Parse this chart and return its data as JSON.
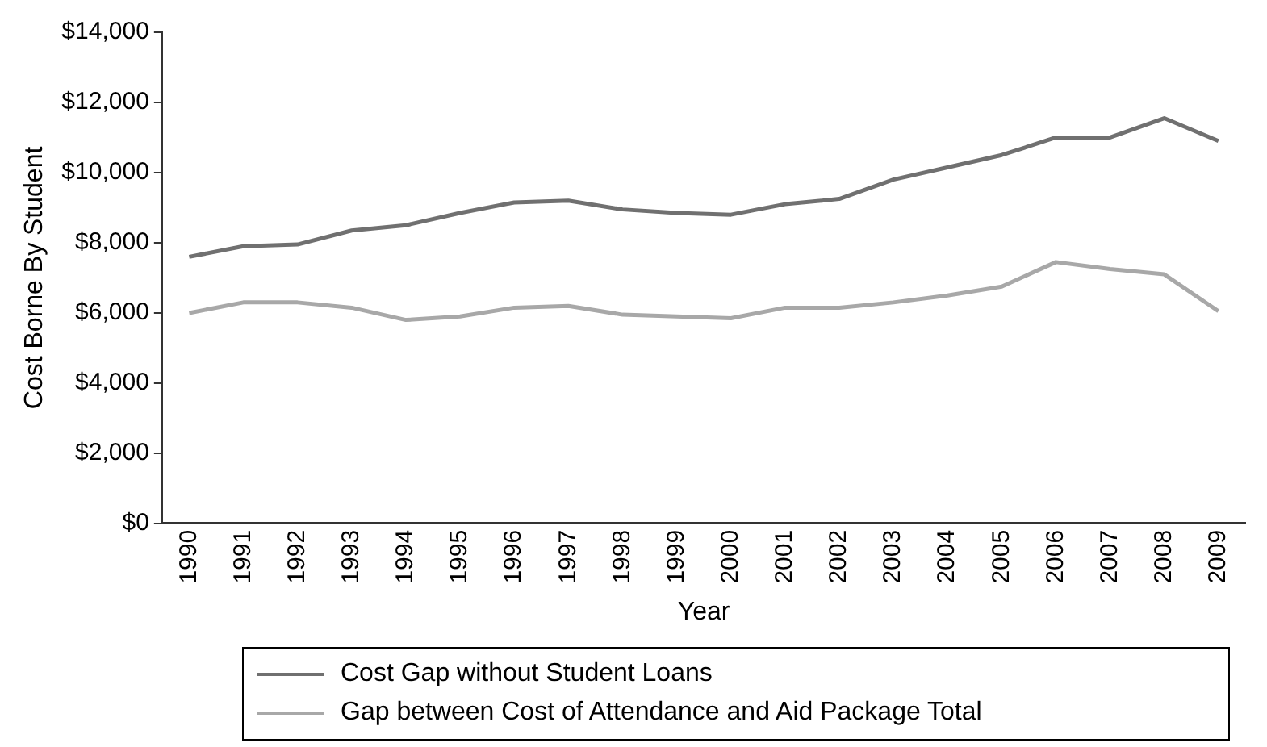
{
  "chart_data": {
    "type": "line",
    "xlabel": "Year",
    "ylabel": "Cost Borne By Student",
    "categories": [
      "1990",
      "1991",
      "1992",
      "1993",
      "1994",
      "1995",
      "1996",
      "1997",
      "1998",
      "1999",
      "2000",
      "2001",
      "2002",
      "2003",
      "2004",
      "2005",
      "2006",
      "2007",
      "2008",
      "2009"
    ],
    "series": [
      {
        "name": "Cost Gap without Student Loans",
        "color": "#707070",
        "values": [
          7600,
          7900,
          7950,
          8350,
          8500,
          8850,
          9150,
          9200,
          8950,
          8850,
          8800,
          9100,
          9250,
          9800,
          10150,
          10500,
          11000,
          11000,
          11550,
          10900
        ]
      },
      {
        "name": "Gap between Cost of Attendance and Aid Package Total",
        "color": "#a8a8a8",
        "values": [
          6000,
          6300,
          6300,
          6150,
          5800,
          5900,
          6150,
          6200,
          5950,
          5900,
          5850,
          6150,
          6150,
          6300,
          6500,
          6750,
          7450,
          7250,
          7100,
          6050
        ]
      }
    ],
    "ylim": [
      0,
      14000
    ],
    "yticks": [
      {
        "value": 0,
        "label": "$0"
      },
      {
        "value": 2000,
        "label": "$2,000"
      },
      {
        "value": 4000,
        "label": "$4,000"
      },
      {
        "value": 6000,
        "label": "$6,000"
      },
      {
        "value": 8000,
        "label": "$8,000"
      },
      {
        "value": 10000,
        "label": "$10,000"
      },
      {
        "value": 12000,
        "label": "$12,000"
      },
      {
        "value": 14000,
        "label": "$14,000"
      }
    ],
    "grid": false,
    "legend": "bottom",
    "marker": "none",
    "line_style": "solid"
  }
}
